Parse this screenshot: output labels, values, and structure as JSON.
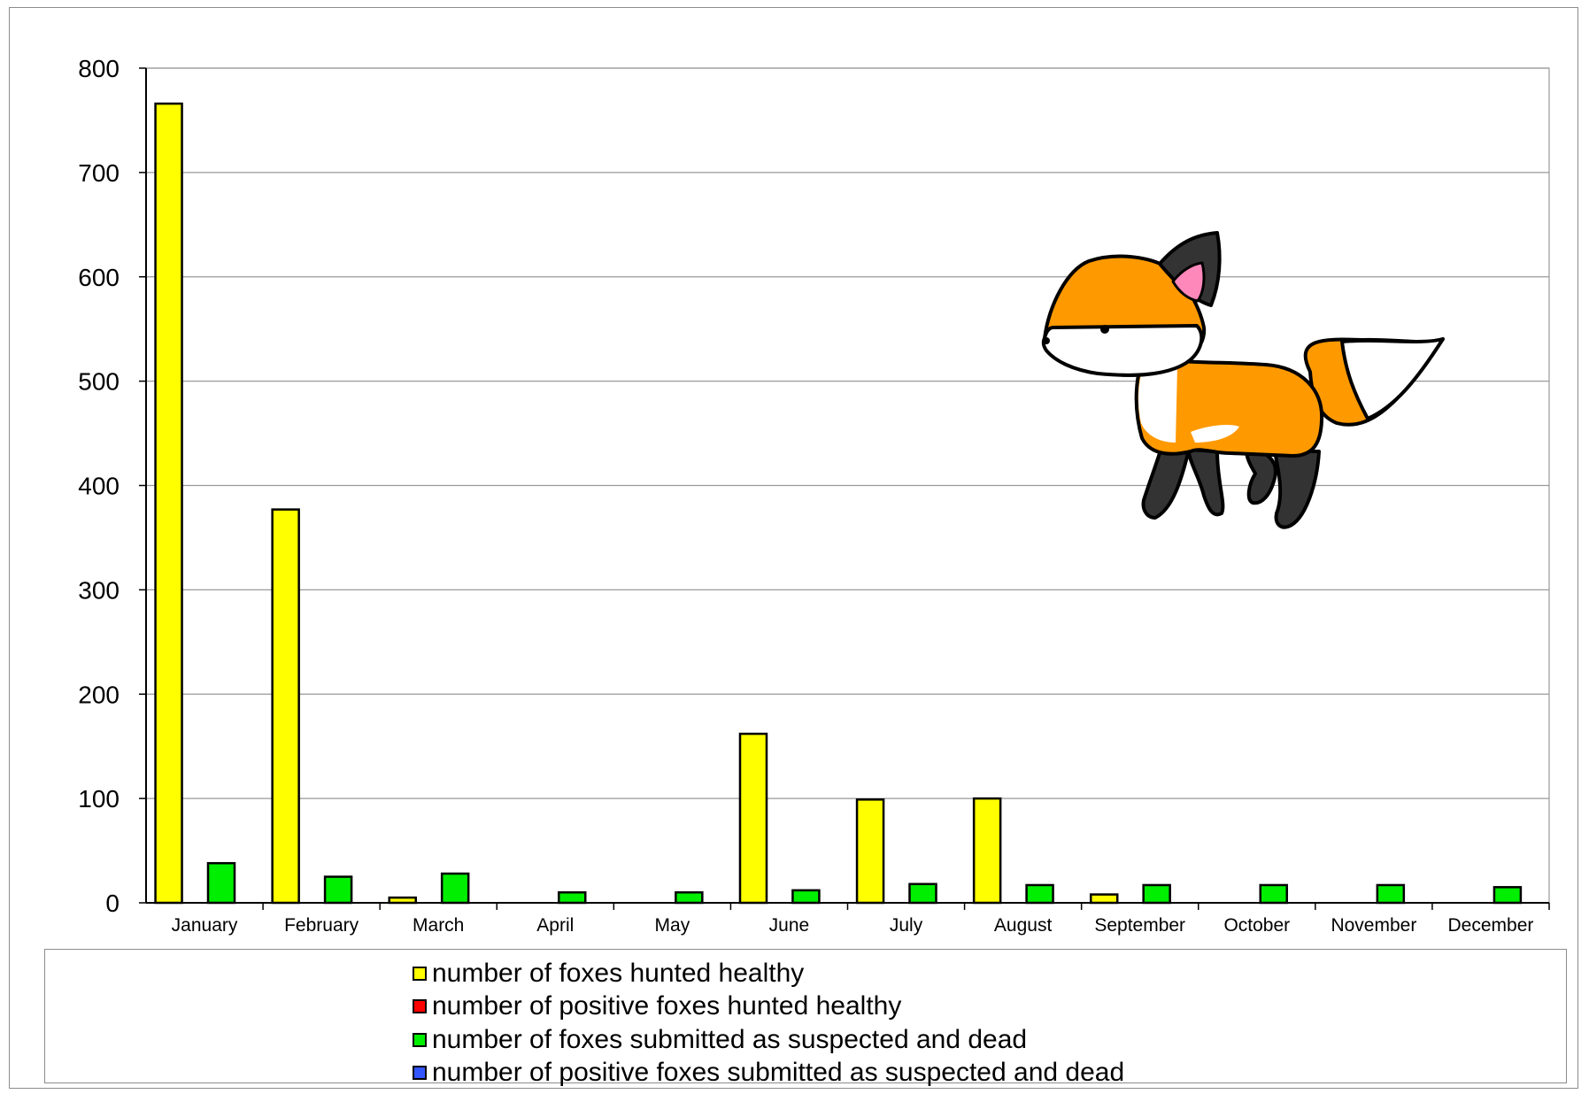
{
  "chart_data": {
    "type": "bar",
    "categories": [
      "January",
      "February",
      "March",
      "April",
      "May",
      "June",
      "July",
      "August",
      "September",
      "October",
      "November",
      "December"
    ],
    "series": [
      {
        "name": "number of foxes hunted healthy",
        "color": "#ffff00",
        "values": [
          766,
          377,
          5,
          0,
          0,
          162,
          99,
          100,
          8,
          0,
          0,
          0
        ]
      },
      {
        "name": "number of positive foxes hunted healthy",
        "color": "#ff0000",
        "values": [
          0,
          0,
          0,
          0,
          0,
          0,
          0,
          0,
          0,
          0,
          0,
          0
        ]
      },
      {
        "name": "number of foxes submitted as suspected and dead",
        "color": "#00ee00",
        "values": [
          38,
          25,
          28,
          10,
          10,
          12,
          18,
          17,
          17,
          17,
          17,
          15
        ]
      },
      {
        "name": "number of positive foxes submitted as suspected and dead",
        "color": "#3355ff",
        "values": [
          0,
          0,
          0,
          0,
          0,
          0,
          0,
          0,
          0,
          0,
          0,
          0
        ]
      }
    ],
    "ylim": [
      0,
      800
    ],
    "yticks": [
      0,
      100,
      200,
      300,
      400,
      500,
      600,
      700,
      800
    ],
    "grid": true,
    "legend_position": "bottom",
    "decoration": "cartoon-fox-illustration"
  }
}
